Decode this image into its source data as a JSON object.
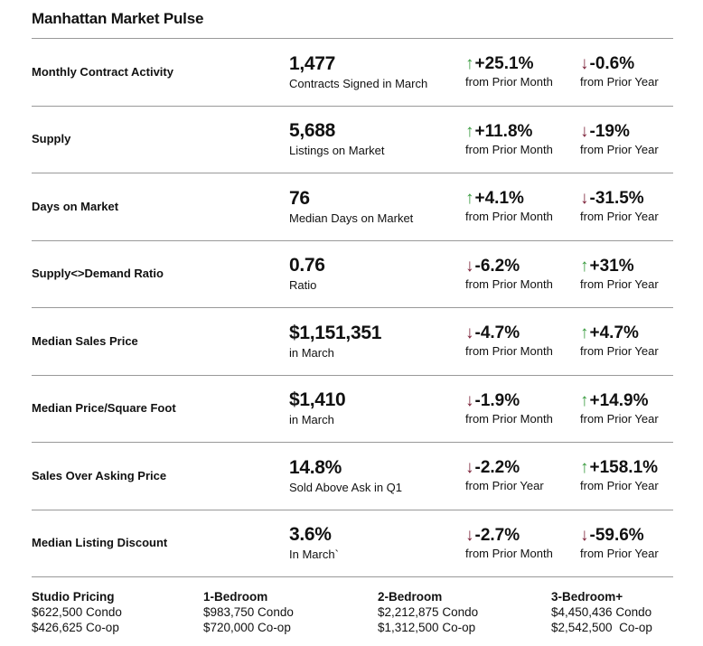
{
  "title": "Manhattan Market Pulse",
  "colors": {
    "trend_up": "#379a3d",
    "trend_down": "#7a1f36",
    "divider": "#999999",
    "text": "#111111"
  },
  "icons": {
    "up": "↑",
    "down": "↓"
  },
  "metrics": [
    {
      "label": "Monthly Contract Activity",
      "value": "1,477",
      "value_sub": "Contracts Signed in March",
      "month": {
        "dir": "up",
        "pct": "+25.1%",
        "caption": "from Prior Month"
      },
      "year": {
        "dir": "down",
        "pct": "-0.6%",
        "caption": "from Prior Year"
      }
    },
    {
      "label": "Supply",
      "value": "5,688",
      "value_sub": "Listings on Market",
      "month": {
        "dir": "up",
        "pct": "+11.8%",
        "caption": "from Prior Month"
      },
      "year": {
        "dir": "down",
        "pct": "-19%",
        "caption": "from Prior Year"
      }
    },
    {
      "label": "Days on Market",
      "value": "76",
      "value_sub": "Median Days on Market",
      "month": {
        "dir": "up",
        "pct": "+4.1%",
        "caption": "from Prior Month"
      },
      "year": {
        "dir": "down",
        "pct": "-31.5%",
        "caption": "from Prior Year"
      }
    },
    {
      "label": "Supply<>Demand Ratio",
      "value": "0.76",
      "value_sub": "Ratio",
      "month": {
        "dir": "down",
        "pct": "-6.2%",
        "caption": "from Prior Month"
      },
      "year": {
        "dir": "up",
        "pct": "+31%",
        "caption": "from Prior Year"
      }
    },
    {
      "label": "Median Sales Price",
      "value": "$1,151,351",
      "value_sub": "in March",
      "month": {
        "dir": "down",
        "pct": "-4.7%",
        "caption": "from Prior Month"
      },
      "year": {
        "dir": "up",
        "pct": "+4.7%",
        "caption": "from Prior Year"
      }
    },
    {
      "label": "Median Price/Square Foot",
      "value": "$1,410",
      "value_sub": "in March",
      "month": {
        "dir": "down",
        "pct": "-1.9%",
        "caption": "from Prior Month"
      },
      "year": {
        "dir": "up",
        "pct": "+14.9%",
        "caption": "from Prior Year"
      }
    },
    {
      "label": "Sales Over Asking Price",
      "value": "14.8%",
      "value_sub": "Sold Above Ask in Q1",
      "month": {
        "dir": "down",
        "pct": "-2.2%",
        "caption": "from Prior Year"
      },
      "year": {
        "dir": "up",
        "pct": "+158.1%",
        "caption": "from Prior Year"
      }
    },
    {
      "label": "Median Listing Discount",
      "value": "3.6%",
      "value_sub": "In March`",
      "month": {
        "dir": "down",
        "pct": "-2.7%",
        "caption": "from Prior Month"
      },
      "year": {
        "dir": "down",
        "pct": "-59.6%",
        "caption": "from Prior Year"
      }
    }
  ],
  "pricing": {
    "columns": [
      {
        "header": "Studio Pricing",
        "condo": "$622,500 Condo",
        "coop": "$426,625 Co-op"
      },
      {
        "header": "1-Bedroom",
        "condo": "$983,750 Condo",
        "coop": "$720,000 Co-op"
      },
      {
        "header": "2-Bedroom",
        "condo": "$2,212,875 Condo",
        "coop": "$1,312,500 Co-op"
      },
      {
        "header": "3-Bedroom+",
        "condo": "$4,450,436 Condo",
        "coop": "$2,542,500  Co-op"
      }
    ]
  }
}
